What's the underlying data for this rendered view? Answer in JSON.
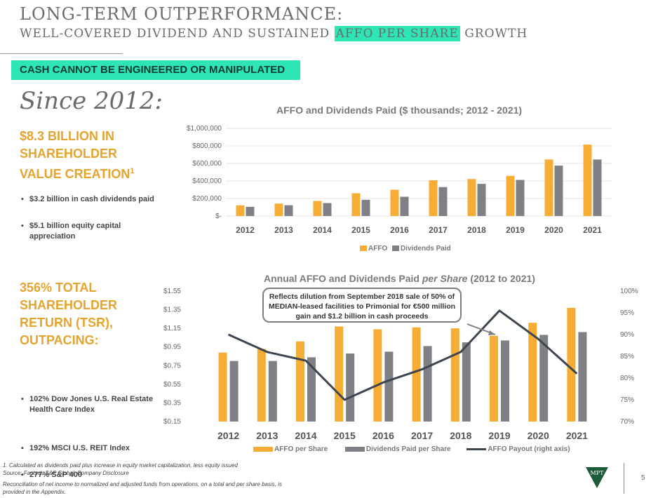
{
  "header": {
    "title": "LONG-TERM OUTPERFORMANCE:",
    "subtitle_before": "WELL-COVERED DIVIDEND AND SUSTAINED",
    "subtitle_highlight": "AFFO PER SHARE",
    "subtitle_after": "GROWTH"
  },
  "banner": "CASH CANNOT BE ENGINEERED OR MANIPULATED",
  "since": "Since 2012:",
  "section1": {
    "headline": "$8.3 BILLION IN SHAREHOLDER VALUE CREATION",
    "footnote_mark": "1",
    "bullets": [
      "$3.2 billion in cash dividends paid",
      "$5.1 billion equity capital appreciation"
    ]
  },
  "section2": {
    "headline": "356% TOTAL SHAREHOLDER RETURN (TSR), OUTPACING:",
    "bullets": [
      "102% Dow Jones U.S. Real Estate Health Care Index",
      "192% MSCI U.S. REIT Index",
      "277% S&P 400"
    ]
  },
  "callout": "Reflects dilution from September 2018 sale of 50% of MEDIAN-leased facilities to Primonial for €500 million gain and $1.2 billion in cash proceeds",
  "footer": {
    "note1": "1. Calculated as dividends paid plus increase in equity market capitalization, less equity issued",
    "source": "Source: Factset, S&P Global, Company Disclosure",
    "note2": "Reconciliation of net income to normalized and adjusted funds from operations, on a total and per share basis, is provided in the Appendix.",
    "page": "5",
    "logo_text": "MPT"
  },
  "colors": {
    "affo": "#f6ad36",
    "dividends": "#7f8085",
    "payout": "#3d4650",
    "accent": "#2ee6b5",
    "gold": "#e5a42e"
  },
  "chart_data": [
    {
      "type": "bar",
      "title": "AFFO and Dividends Paid ($ thousands; 2012 - 2021)",
      "categories": [
        "2012",
        "2013",
        "2014",
        "2015",
        "2016",
        "2017",
        "2018",
        "2019",
        "2020",
        "2021"
      ],
      "series": [
        {
          "name": "AFFO",
          "values": [
            122000,
            142000,
            172000,
            260000,
            300000,
            408000,
            422000,
            458000,
            645000,
            815000
          ]
        },
        {
          "name": "Dividends Paid",
          "values": [
            105000,
            123000,
            148000,
            185000,
            220000,
            330000,
            367000,
            412000,
            575000,
            645000
          ]
        }
      ],
      "ylim": [
        0,
        1000000
      ],
      "yticks": [
        "$-",
        "$200,000",
        "$400,000",
        "$600,000",
        "$800,000",
        "$1,000,000"
      ],
      "legend": "bottom"
    },
    {
      "type": "bar",
      "title_main": "Annual AFFO and Dividends Paid",
      "title_italic": "per Share",
      "title_suffix": "(2012 to 2021)",
      "categories": [
        "2012",
        "2013",
        "2014",
        "2015",
        "2016",
        "2017",
        "2018",
        "2019",
        "2020",
        "2021"
      ],
      "series": [
        {
          "name": "AFFO per Share",
          "values": [
            0.89,
            0.93,
            1.01,
            1.17,
            1.14,
            1.16,
            1.15,
            1.07,
            1.21,
            1.37
          ]
        },
        {
          "name": "Dividends Paid per Share",
          "values": [
            0.8,
            0.8,
            0.84,
            0.88,
            0.9,
            0.96,
            1.0,
            1.02,
            1.08,
            1.11
          ]
        },
        {
          "name": "AFFO Payout (right axis)",
          "axis": "right",
          "values": [
            90,
            86,
            84,
            75,
            79,
            82,
            86,
            95.5,
            89,
            81
          ]
        }
      ],
      "ylim": [
        0.15,
        1.55
      ],
      "yticks": [
        "$0.15",
        "$0.35",
        "$0.55",
        "$0.75",
        "$0.95",
        "$1.15",
        "$1.35",
        "$1.55"
      ],
      "y2lim": [
        70,
        100
      ],
      "y2ticks": [
        "70%",
        "75%",
        "80%",
        "85%",
        "90%",
        "95%",
        "100%"
      ],
      "legend": "bottom"
    }
  ]
}
